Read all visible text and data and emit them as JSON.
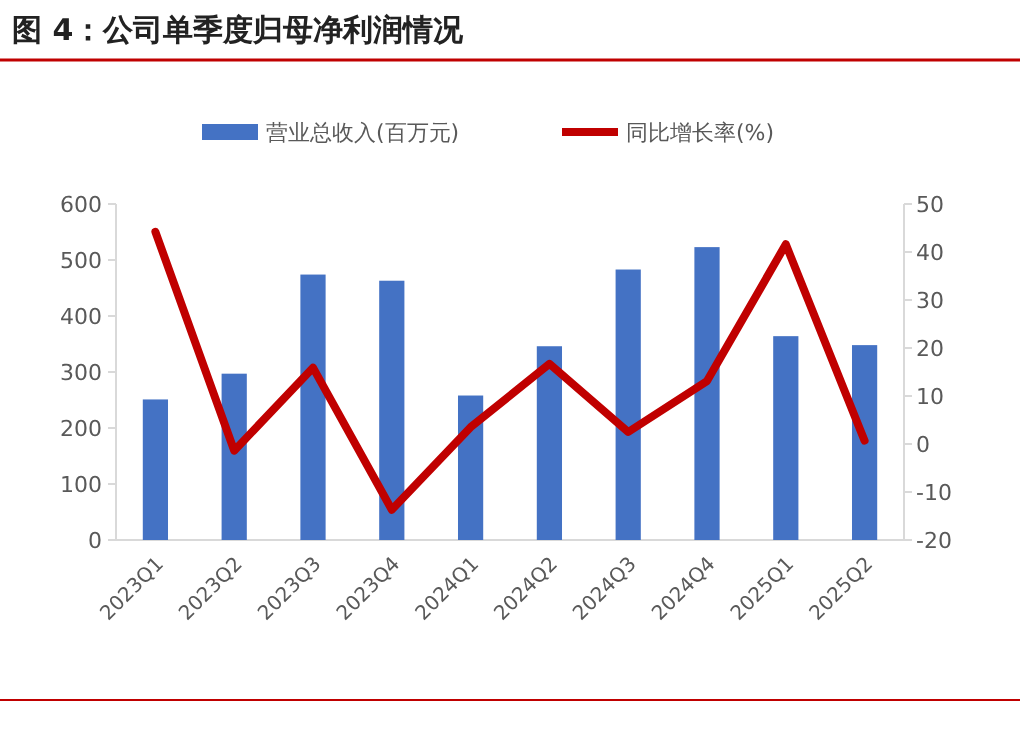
{
  "chart_data": {
    "type": "bar",
    "title": "图 4：公司单季度归母净利润情况",
    "categories": [
      "2023Q1",
      "2023Q2",
      "2023Q3",
      "2023Q4",
      "2024Q1",
      "2024Q2",
      "2024Q3",
      "2024Q4",
      "2025Q1",
      "2025Q2"
    ],
    "series": [
      {
        "name": "营业总收入(百万元)",
        "color": "#4472c4",
        "values": [
          251,
          297,
          474,
          463,
          258,
          346,
          483,
          523,
          364,
          348
        ]
      },
      {
        "name": "同比增长率(%)",
        "type": "line",
        "axis": "y2",
        "color": "#c00000",
        "values": [
          44.2,
          -1.4,
          15.9,
          -13.7,
          3.5,
          16.7,
          2.5,
          13.1,
          41.6,
          0.7
        ]
      }
    ],
    "ylim": [
      0,
      600
    ],
    "yticks": [
      0,
      100,
      200,
      300,
      400,
      500,
      600
    ],
    "y2lim": [
      -20,
      50
    ],
    "y2ticks": [
      -20,
      -10,
      0,
      10,
      20,
      30,
      40,
      50
    ],
    "legend": "top"
  }
}
